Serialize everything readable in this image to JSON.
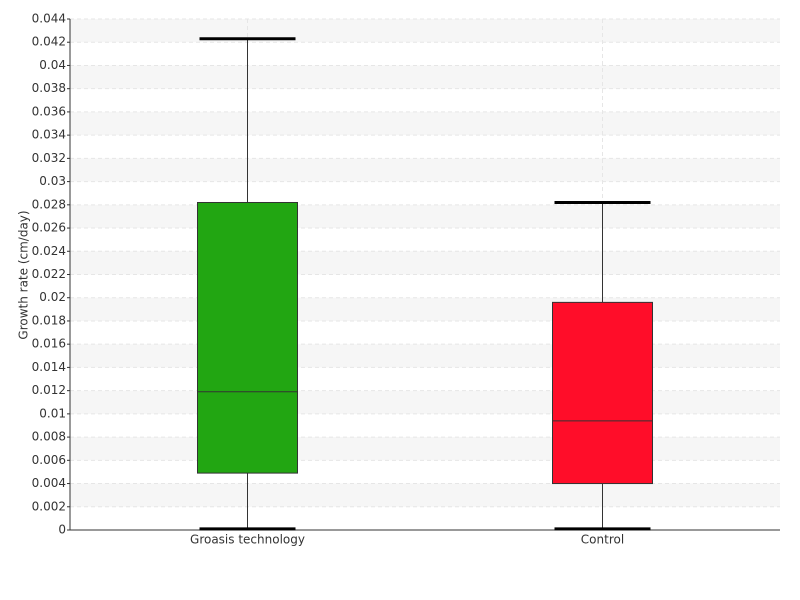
{
  "chart_data": {
    "type": "box",
    "y_label": "Growth rate (cm/day)",
    "categories": [
      "Groasis technology",
      "Control"
    ],
    "boxes": [
      {
        "min": 0.0001,
        "q1": 0.0049,
        "median": 0.0119,
        "q3": 0.0282,
        "max": 0.0423,
        "color": "#22a612"
      },
      {
        "min": 0.0001,
        "q1": 0.004,
        "median": 0.0094,
        "q3": 0.0196,
        "max": 0.0282,
        "color": "#ff0d29"
      }
    ],
    "ylim": [
      0,
      0.044
    ],
    "yticks": [
      0,
      0.002,
      0.004,
      0.006,
      0.008,
      0.01,
      0.012,
      0.014,
      0.016,
      0.018,
      0.02,
      0.022,
      0.024,
      0.026,
      0.028,
      0.03,
      0.032,
      0.034,
      0.036,
      0.038,
      0.04,
      0.042,
      0.044
    ],
    "grid": true
  }
}
